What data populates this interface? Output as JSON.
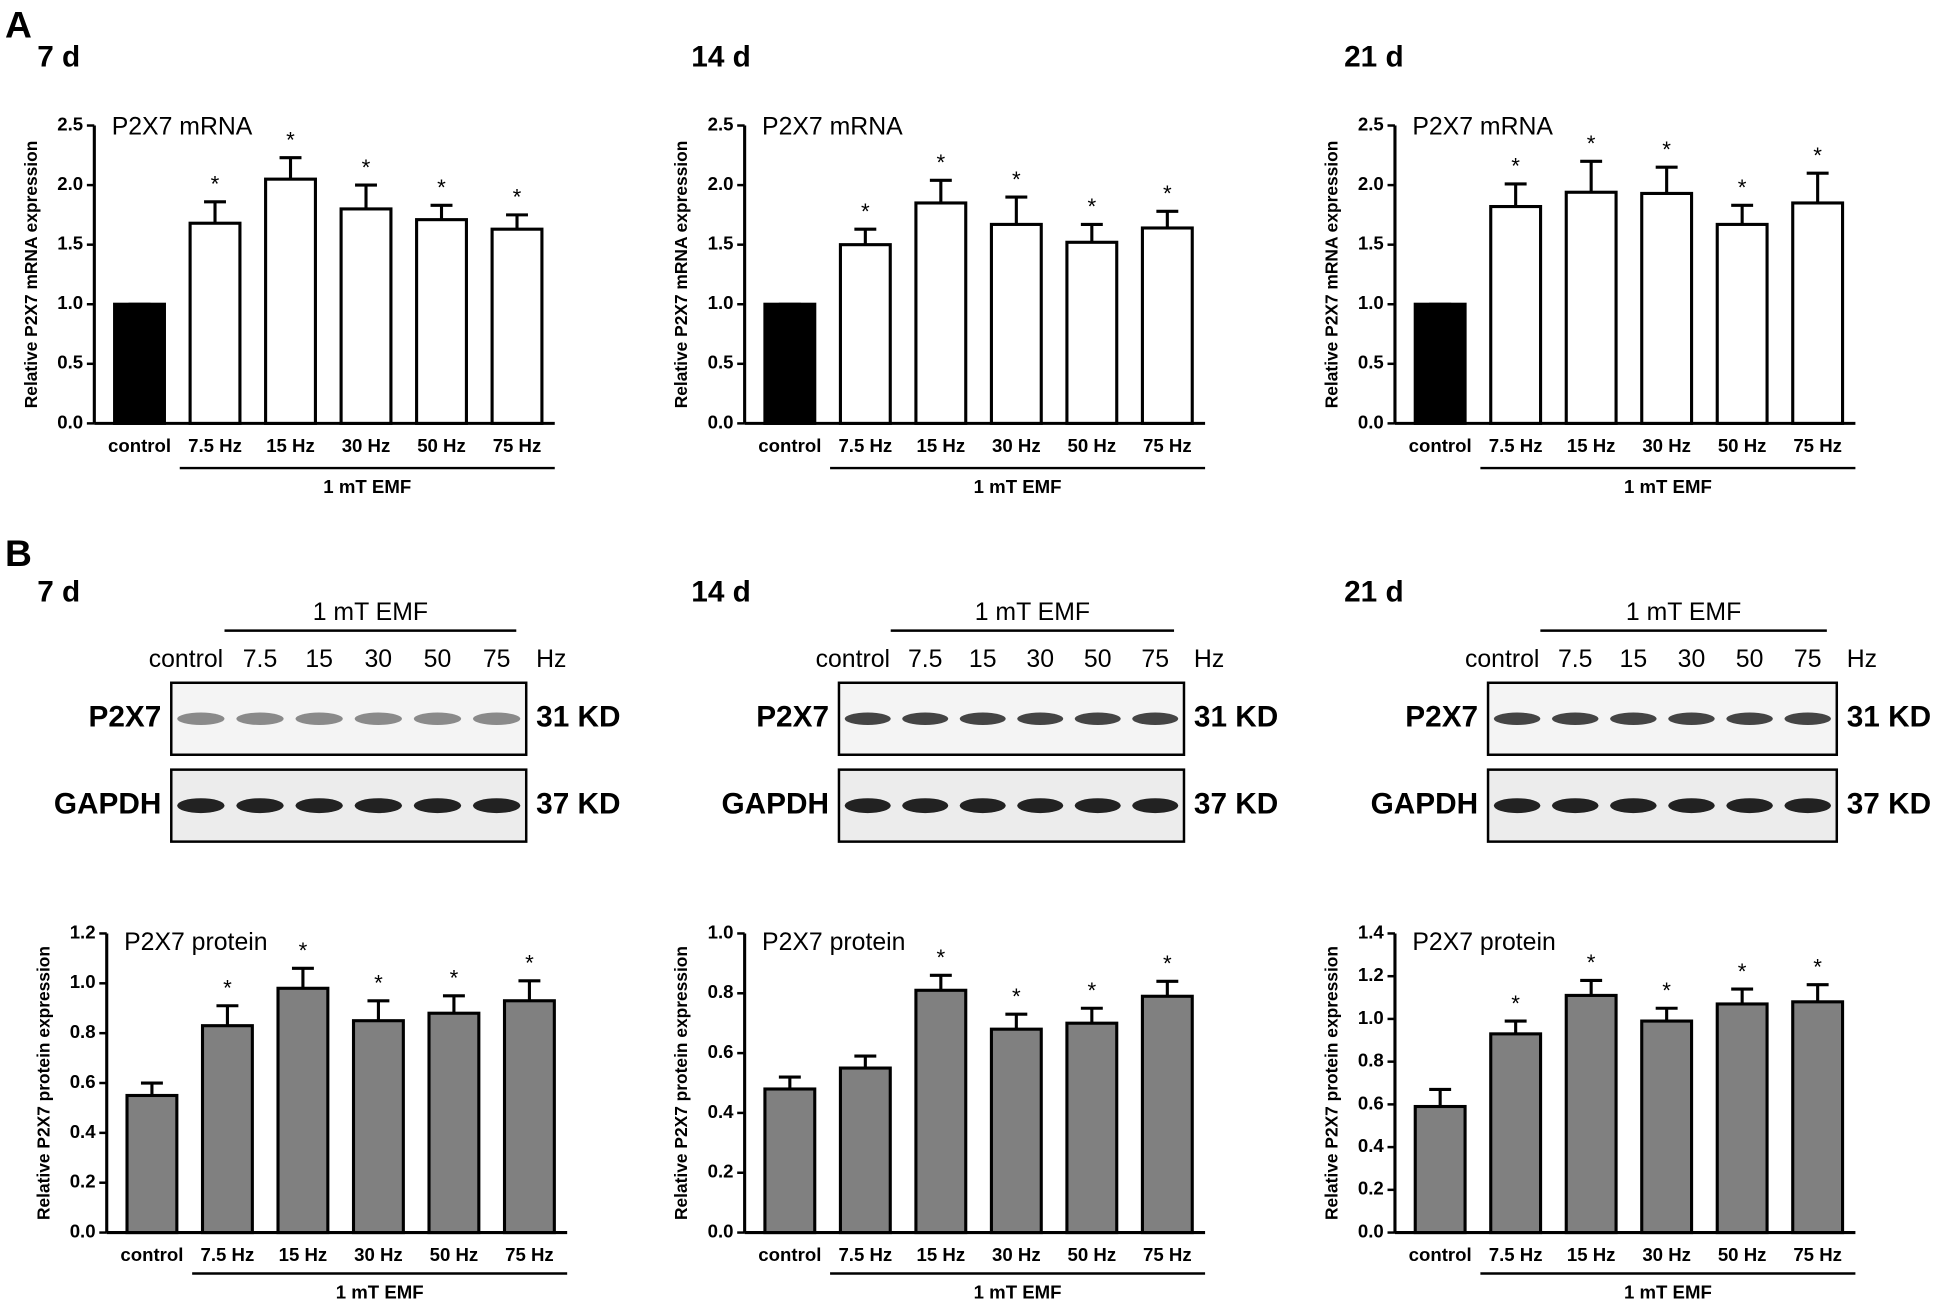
{
  "panel_labels": [
    "A",
    "B"
  ],
  "chart_data": [
    {
      "type": "bar",
      "title": "7 d",
      "annotation": "P2X7 mRNA",
      "y_label": "Relative P2X7 mRNA expression",
      "categories": [
        "control",
        "7.5 Hz",
        "15 Hz",
        "30 Hz",
        "50 Hz",
        "75 Hz"
      ],
      "group_label": "1 mT EMF",
      "values": [
        1.0,
        1.68,
        2.05,
        1.8,
        1.71,
        1.63
      ],
      "errors": [
        0,
        0.18,
        0.18,
        0.2,
        0.12,
        0.12
      ],
      "significance": [
        null,
        "*",
        "*",
        "*",
        "*",
        "*"
      ],
      "colors": [
        "#000000",
        "#ffffff",
        "#ffffff",
        "#ffffff",
        "#ffffff",
        "#ffffff"
      ],
      "ylim": [
        0,
        2.5
      ],
      "yticks": [
        {
          "value": 0,
          "label": "0.0"
        },
        {
          "value": 0.5,
          "label": "0.5"
        },
        {
          "value": 1,
          "label": "1.0"
        },
        {
          "value": 1.5,
          "label": "1.5"
        },
        {
          "value": 2,
          "label": "2.0"
        },
        {
          "value": 2.5,
          "label": "2.5"
        }
      ]
    },
    {
      "type": "bar",
      "title": "14 d",
      "annotation": "P2X7 mRNA",
      "y_label": "Relative P2X7 mRNA expression",
      "categories": [
        "control",
        "7.5 Hz",
        "15 Hz",
        "30 Hz",
        "50 Hz",
        "75 Hz"
      ],
      "group_label": "1 mT EMF",
      "values": [
        1.0,
        1.5,
        1.85,
        1.67,
        1.52,
        1.64
      ],
      "errors": [
        0,
        0.13,
        0.19,
        0.23,
        0.15,
        0.14
      ],
      "significance": [
        null,
        "*",
        "*",
        "*",
        "*",
        "*"
      ],
      "colors": [
        "#000000",
        "#ffffff",
        "#ffffff",
        "#ffffff",
        "#ffffff",
        "#ffffff"
      ],
      "ylim": [
        0,
        2.5
      ],
      "yticks": [
        {
          "value": 0,
          "label": "0.0"
        },
        {
          "value": 0.5,
          "label": "0.5"
        },
        {
          "value": 1,
          "label": "1.0"
        },
        {
          "value": 1.5,
          "label": "1.5"
        },
        {
          "value": 2,
          "label": "2.0"
        },
        {
          "value": 2.5,
          "label": "2.5"
        }
      ]
    },
    {
      "type": "bar",
      "title": "21 d",
      "annotation": "P2X7 mRNA",
      "y_label": "Relative P2X7 mRNA expression",
      "categories": [
        "control",
        "7.5 Hz",
        "15 Hz",
        "30 Hz",
        "50 Hz",
        "75 Hz"
      ],
      "group_label": "1 mT EMF",
      "values": [
        1.0,
        1.82,
        1.94,
        1.93,
        1.67,
        1.85
      ],
      "errors": [
        0,
        0.19,
        0.26,
        0.22,
        0.16,
        0.25
      ],
      "significance": [
        null,
        "*",
        "*",
        "*",
        "*",
        "*"
      ],
      "colors": [
        "#000000",
        "#ffffff",
        "#ffffff",
        "#ffffff",
        "#ffffff",
        "#ffffff"
      ],
      "ylim": [
        0,
        2.5
      ],
      "yticks": [
        {
          "value": 0,
          "label": "0.0"
        },
        {
          "value": 0.5,
          "label": "0.5"
        },
        {
          "value": 1,
          "label": "1.0"
        },
        {
          "value": 1.5,
          "label": "1.5"
        },
        {
          "value": 2,
          "label": "2.0"
        },
        {
          "value": 2.5,
          "label": "2.5"
        }
      ]
    },
    {
      "type": "bar",
      "annotation": "P2X7 protein",
      "y_label": "Relative P2X7 protein expression",
      "categories": [
        "control",
        "7.5 Hz",
        "15 Hz",
        "30 Hz",
        "50 Hz",
        "75 Hz"
      ],
      "group_label": "1 mT EMF",
      "values": [
        0.55,
        0.83,
        0.98,
        0.85,
        0.88,
        0.93
      ],
      "errors": [
        0.05,
        0.08,
        0.08,
        0.08,
        0.07,
        0.08
      ],
      "significance": [
        null,
        "*",
        "*",
        "*",
        "*",
        "*"
      ],
      "colors": [
        "#808080",
        "#808080",
        "#808080",
        "#808080",
        "#808080",
        "#808080"
      ],
      "ylim": [
        0,
        1.2
      ],
      "yticks": [
        {
          "value": 0,
          "label": "0.0"
        },
        {
          "value": 0.2,
          "label": "0.2"
        },
        {
          "value": 0.4,
          "label": "0.4"
        },
        {
          "value": 0.6,
          "label": "0.6"
        },
        {
          "value": 0.8,
          "label": "0.8"
        },
        {
          "value": 1,
          "label": "1.0"
        },
        {
          "value": 1.2,
          "label": "1.2"
        }
      ]
    },
    {
      "type": "bar",
      "annotation": "P2X7 protein",
      "y_label": "Relative P2X7 protein expression",
      "categories": [
        "control",
        "7.5 Hz",
        "15 Hz",
        "30 Hz",
        "50 Hz",
        "75 Hz"
      ],
      "group_label": "1 mT EMF",
      "values": [
        0.48,
        0.55,
        0.81,
        0.68,
        0.7,
        0.79
      ],
      "errors": [
        0.04,
        0.04,
        0.05,
        0.05,
        0.05,
        0.05
      ],
      "significance": [
        null,
        null,
        "*",
        "*",
        "*",
        "*"
      ],
      "colors": [
        "#808080",
        "#808080",
        "#808080",
        "#808080",
        "#808080",
        "#808080"
      ],
      "ylim": [
        0,
        1
      ],
      "yticks": [
        {
          "value": 0,
          "label": "0.0"
        },
        {
          "value": 0.2,
          "label": "0.2"
        },
        {
          "value": 0.4,
          "label": "0.4"
        },
        {
          "value": 0.6,
          "label": "0.6"
        },
        {
          "value": 0.8,
          "label": "0.8"
        },
        {
          "value": 1,
          "label": "1.0"
        }
      ]
    },
    {
      "type": "bar",
      "annotation": "P2X7 protein",
      "y_label": "Relative P2X7 protein expression",
      "categories": [
        "control",
        "7.5 Hz",
        "15 Hz",
        "30 Hz",
        "50 Hz",
        "75 Hz"
      ],
      "group_label": "1 mT EMF",
      "values": [
        0.59,
        0.93,
        1.11,
        0.99,
        1.07,
        1.08
      ],
      "errors": [
        0.08,
        0.06,
        0.07,
        0.06,
        0.07,
        0.08
      ],
      "significance": [
        null,
        "*",
        "*",
        "*",
        "*",
        "*"
      ],
      "colors": [
        "#808080",
        "#808080",
        "#808080",
        "#808080",
        "#808080",
        "#808080"
      ],
      "ylim": [
        0,
        1.4
      ],
      "yticks": [
        {
          "value": 0,
          "label": "0.0"
        },
        {
          "value": 0.2,
          "label": "0.2"
        },
        {
          "value": 0.4,
          "label": "0.4"
        },
        {
          "value": 0.6,
          "label": "0.6"
        },
        {
          "value": 0.8,
          "label": "0.8"
        },
        {
          "value": 1,
          "label": "1.0"
        },
        {
          "value": 1.2,
          "label": "1.2"
        },
        {
          "value": 1.4,
          "label": "1.4"
        }
      ]
    }
  ],
  "blots": [
    {
      "title": "7 d",
      "group_label": "1 mT EMF",
      "lanes": [
        "control",
        "7.5",
        "15",
        "30",
        "50",
        "75"
      ],
      "lane_unit": "Hz",
      "rows": [
        {
          "protein": "P2X7",
          "size": "31 KD"
        },
        {
          "protein": "GAPDH",
          "size": "37 KD"
        }
      ]
    },
    {
      "title": "14 d",
      "group_label": "1 mT EMF",
      "lanes": [
        "control",
        "7.5",
        "15",
        "30",
        "50",
        "75"
      ],
      "lane_unit": "Hz",
      "rows": [
        {
          "protein": "P2X7",
          "size": "31 KD"
        },
        {
          "protein": "GAPDH",
          "size": "37 KD"
        }
      ]
    },
    {
      "title": "21 d",
      "group_label": "1 mT EMF",
      "lanes": [
        "control",
        "7.5",
        "15",
        "30",
        "50",
        "75"
      ],
      "lane_unit": "Hz",
      "rows": [
        {
          "protein": "P2X7",
          "size": "31 KD"
        },
        {
          "protein": "GAPDH",
          "size": "37 KD"
        }
      ]
    }
  ]
}
